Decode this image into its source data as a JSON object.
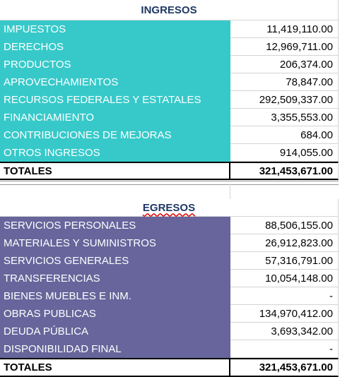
{
  "ingresos": {
    "title": "INGRESOS",
    "rows": [
      [
        "IMPUESTOS",
        "11,419,110.00"
      ],
      [
        "DERECHOS",
        "12,969,711.00"
      ],
      [
        "PRODUCTOS",
        "206,374.00"
      ],
      [
        "APROVECHAMIENTOS",
        "78,847.00"
      ],
      [
        "RECURSOS FEDERALES Y ESTATALES",
        "292,509,337.00"
      ],
      [
        "FINANCIAMIENTO",
        "3,355,553.00"
      ],
      [
        "CONTRIBUCIONES DE MEJORAS",
        "684.00"
      ],
      [
        "OTROS INGRESOS",
        "914,055.00"
      ]
    ],
    "total": [
      "TOTALES",
      "321,453,671.00"
    ]
  },
  "egresos": {
    "title": "EGRESOS",
    "rows": [
      [
        "SERVICIOS PERSONALES",
        "88,506,155.00"
      ],
      [
        "MATERIALES Y SUMINISTROS",
        "26,912,823.00"
      ],
      [
        "SERVICIOS GENERALES",
        "57,316,791.00"
      ],
      [
        "TRANSFERENCIAS",
        "10,054,148.00"
      ],
      [
        "BIENES MUEBLES E INM.",
        "-"
      ],
      [
        "OBRAS PUBLICAS",
        "134,970,412.00"
      ],
      [
        "DEUDA PÚBLICA",
        "3,693,342.00"
      ],
      [
        "DISPONIBILIDAD FINAL",
        "-"
      ]
    ],
    "total": [
      "TOTALES",
      "321,453,671.00"
    ]
  }
}
